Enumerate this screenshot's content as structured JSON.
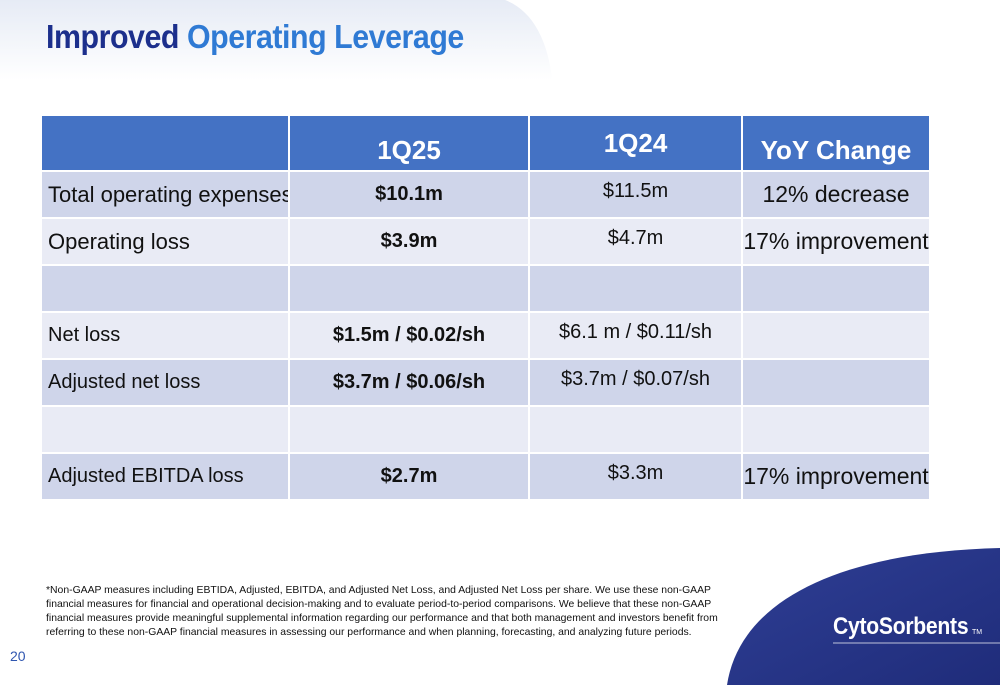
{
  "title": {
    "part1": "Improved",
    "part2": "Operating Leverage"
  },
  "table": {
    "headers": [
      "",
      "1Q25",
      "1Q24",
      "YoY Change"
    ],
    "rows": [
      {
        "label": "Total operating expenses",
        "q125": "$10.1m",
        "q124": "$11.5m",
        "yoy": "12% decrease"
      },
      {
        "label": "Operating loss",
        "q125": "$3.9m",
        "q124": "$4.7m",
        "yoy": "17% improvement"
      },
      {
        "label": "",
        "q125": "",
        "q124": "",
        "yoy": ""
      },
      {
        "label": "Net loss",
        "q125": "$1.5m / $0.02/sh",
        "q124": "$6.1 m / $0.11/sh",
        "yoy": ""
      },
      {
        "label": "Adjusted net loss",
        "q125": "$3.7m / $0.06/sh",
        "q124": "$3.7m / $0.07/sh",
        "yoy": ""
      },
      {
        "label": "",
        "q125": "",
        "q124": "",
        "yoy": ""
      },
      {
        "label": "Adjusted EBITDA loss",
        "q125": "$2.7m",
        "q124": "$3.3m",
        "yoy": "17% improvement"
      }
    ]
  },
  "footnote": "*Non-GAAP measures including EBTIDA, Adjusted, EBITDA, and Adjusted Net Loss, and Adjusted Net Loss per share.  We use these non-GAAP financial measures for financial and operational decision-making and to evaluate period-to-period comparisons. We believe that these non-GAAP financial measures provide meaningful supplemental information regarding our performance and that both management and investors benefit from referring to these non-GAAP financial measures in assessing our performance and when planning, forecasting, and analyzing future periods.",
  "page_number": "20",
  "logo": {
    "text": "CytoSorbents",
    "tm": "TM"
  },
  "colors": {
    "header_blue": "#4472c4",
    "title_navy": "#1c2f8c",
    "title_blue": "#2f7ad4",
    "row_dark": "#cfd5ea",
    "row_light": "#e9ebf5",
    "corner_navy": "#2e3e92"
  }
}
